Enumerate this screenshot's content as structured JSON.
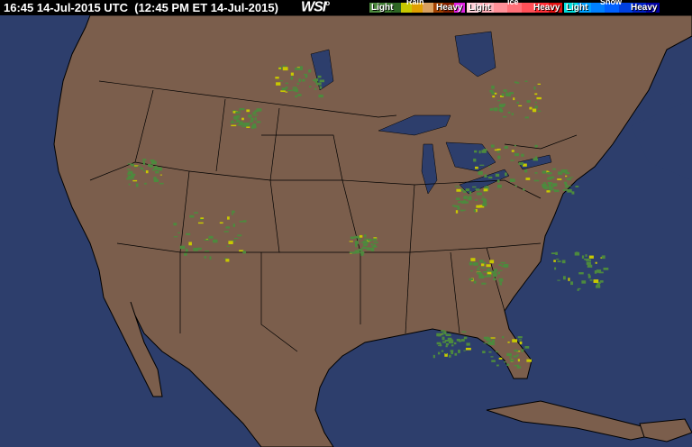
{
  "header": {
    "timestamp": "16:45 14-Jul-2015 UTC  (12:45 PM ET 14-Jul-2015)",
    "logo": "WSI"
  },
  "legend": [
    {
      "type": "Rain",
      "light": "Light",
      "heavy": "Heavy",
      "colors": [
        "#4d8a3e",
        "#3f7a32",
        "#2e6624",
        "#c8c800",
        "#e0a000",
        "#d8a060",
        "#a04000",
        "#802000",
        "#e020e0"
      ]
    },
    {
      "type": "Ice",
      "light": "Light",
      "heavy": "Heavy",
      "colors": [
        "#ffd0d8",
        "#ffb0b8",
        "#ff9098",
        "#ff7078",
        "#ff5058",
        "#ff3038",
        "#e01010"
      ]
    },
    {
      "type": "Snow",
      "light": "Light",
      "heavy": "Heavy",
      "colors": [
        "#00e0e0",
        "#00a0ff",
        "#0080ff",
        "#0060ff",
        "#0040e0",
        "#0020c0",
        "#0000a0"
      ]
    }
  ],
  "colors": {
    "ocean": "#2d3e6c",
    "land": "#7b5e4c",
    "borders": "#000000",
    "radar_light": "#4d8a3e",
    "radar_moderate": "#c8c800"
  }
}
